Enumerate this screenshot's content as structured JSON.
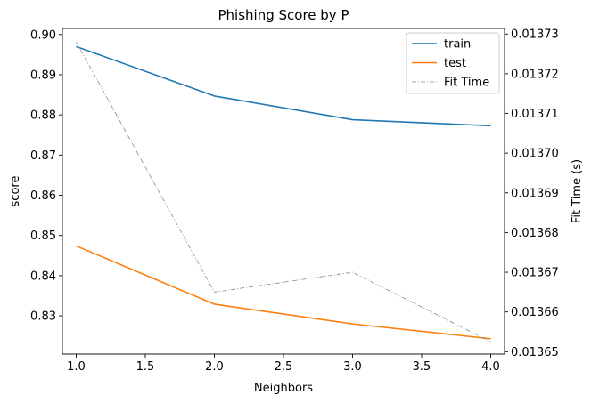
{
  "chart_data": {
    "type": "line",
    "title": "Phishing Score by P",
    "xlabel": "Neighbors",
    "ylabel": "score",
    "y2label": "Fit Time (s)",
    "x": [
      1.0,
      2.0,
      3.0,
      4.0
    ],
    "xlim": [
      0.9,
      4.1
    ],
    "ylim": [
      0.8205,
      0.9015
    ],
    "y2lim": [
      0.0136494,
      0.0137314
    ],
    "xticks": [
      "1.0",
      "1.5",
      "2.0",
      "2.5",
      "3.0",
      "3.5",
      "4.0"
    ],
    "yticks": [
      "0.83",
      "0.84",
      "0.85",
      "0.86",
      "0.87",
      "0.88",
      "0.89",
      "0.90"
    ],
    "y2ticks": [
      "0.01365",
      "0.01366",
      "0.01367",
      "0.01368",
      "0.01369",
      "0.01370",
      "0.01371",
      "0.01372",
      "0.01373"
    ],
    "series": [
      {
        "name": "train",
        "axis": "left",
        "values": [
          0.897,
          0.8847,
          0.8788,
          0.8773
        ],
        "color": "#1f77b4",
        "style": "solid"
      },
      {
        "name": "test",
        "axis": "left",
        "values": [
          0.8474,
          0.8329,
          0.828,
          0.8243
        ],
        "color": "#ff7f0e",
        "style": "solid"
      },
      {
        "name": "Fit Time",
        "axis": "right",
        "values": [
          0.013728,
          0.013665,
          0.01367,
          0.0136525
        ],
        "color": "#888888",
        "style": "dashdot"
      }
    ],
    "legend": "top-right",
    "grid": false
  }
}
